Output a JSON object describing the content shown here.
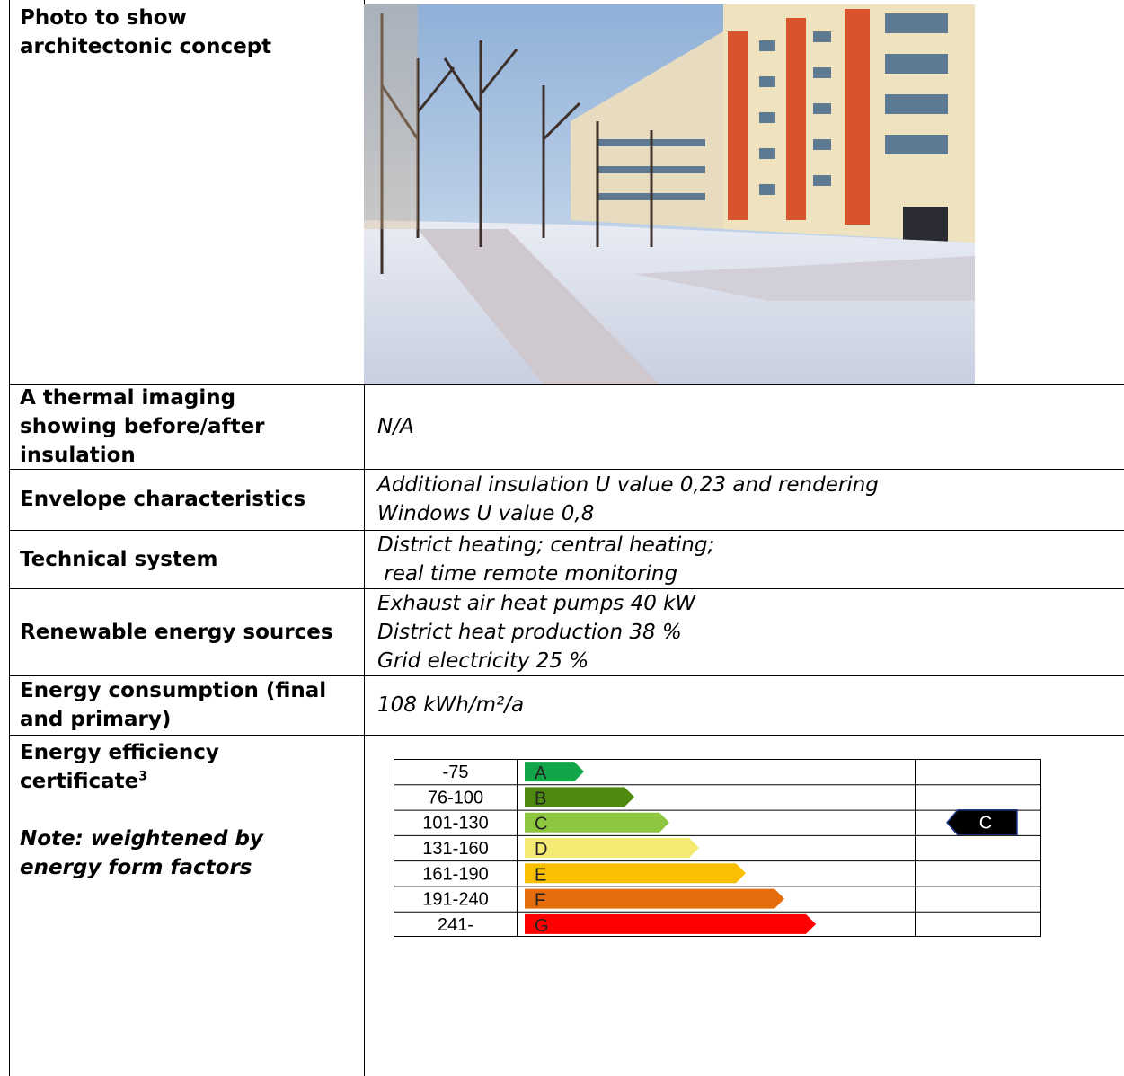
{
  "table": {
    "rows": [
      {
        "label": [
          "Photo to show",
          "architectonic concept"
        ]
      },
      {
        "label": [
          "A thermal imaging",
          "showing before/after",
          "insulation"
        ],
        "value": [
          "N/A"
        ]
      },
      {
        "label": [
          "Envelope characteristics"
        ],
        "value": [
          "Additional insulation U value 0,23 and rendering",
          "Windows U value 0,8"
        ]
      },
      {
        "label": [
          "Technical system"
        ],
        "value": [
          "District heating; central heating;",
          " real time remote monitoring"
        ]
      },
      {
        "label": [
          "Renewable energy sources"
        ],
        "value": [
          "Exhaust air heat pumps 40 kW",
          "District heat production 38 %",
          "Grid electricity 25 %"
        ]
      },
      {
        "label": [
          "Energy consumption (final",
          "and primary)"
        ],
        "value": [
          "108 kWh/m²/a"
        ]
      },
      {
        "label": [
          "Energy efficiency",
          "certificate"
        ],
        "footnote": "3",
        "note": [
          "Note: weightened by",
          "energy form factors"
        ],
        "energy_label": {
          "classes": [
            {
              "range": "-75",
              "letter": "A",
              "color": "#13a54a"
            },
            {
              "range": "76-100",
              "letter": "B",
              "color": "#4f8a10"
            },
            {
              "range": "101-130",
              "letter": "C",
              "color": "#8dc63f"
            },
            {
              "range": "131-160",
              "letter": "D",
              "color": "#f3ea73"
            },
            {
              "range": "161-190",
              "letter": "E",
              "color": "#f9bf00"
            },
            {
              "range": "191-240",
              "letter": "F",
              "color": "#e46c0a"
            },
            {
              "range": "241-",
              "letter": "G",
              "color": "#fe0000"
            }
          ],
          "rating": "C"
        }
      }
    ]
  }
}
